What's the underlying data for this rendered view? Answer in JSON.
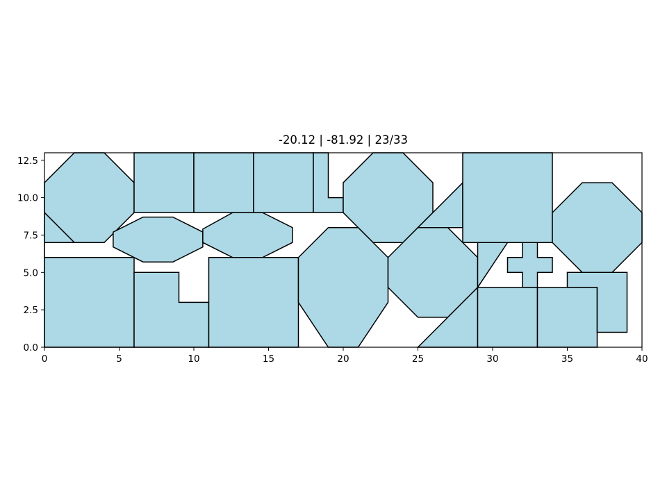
{
  "chart_data": {
    "type": "polygon-packing",
    "title": "-20.12 | -81.92 | 23/33",
    "xlabel": "",
    "ylabel": "",
    "xlim": [
      0,
      40
    ],
    "ylim": [
      0,
      13
    ],
    "xticks": [
      0,
      5,
      10,
      15,
      20,
      25,
      30,
      35,
      40
    ],
    "xtick_labels": [
      "0",
      "5",
      "10",
      "15",
      "20",
      "25",
      "30",
      "35",
      "40"
    ],
    "yticks": [
      0,
      2.5,
      5,
      7.5,
      10,
      12.5
    ],
    "ytick_labels": [
      "0.0",
      "2.5",
      "5.0",
      "7.5",
      "10.0",
      "12.5"
    ],
    "fill_color": "#add8e6",
    "edge_color": "#000000",
    "polygons": [
      [
        [
          0,
          11
        ],
        [
          2,
          13
        ],
        [
          4,
          13
        ],
        [
          6,
          11
        ],
        [
          6,
          9
        ],
        [
          4,
          7
        ],
        [
          2,
          7
        ],
        [
          0,
          9
        ]
      ],
      [
        [
          0,
          9
        ],
        [
          2,
          7
        ],
        [
          0,
          7
        ]
      ],
      [
        [
          0,
          7
        ],
        [
          0,
          6
        ],
        [
          0,
          6
        ]
      ],
      [
        [
          6,
          13
        ],
        [
          10,
          13
        ],
        [
          10,
          9
        ],
        [
          6,
          9
        ]
      ],
      [
        [
          10,
          13
        ],
        [
          14,
          13
        ],
        [
          14,
          9
        ],
        [
          10,
          9
        ]
      ],
      [
        [
          14,
          13
        ],
        [
          18,
          13
        ],
        [
          18,
          9
        ],
        [
          14,
          9
        ]
      ],
      [
        [
          18,
          13
        ],
        [
          19,
          13
        ],
        [
          19,
          10
        ],
        [
          20,
          10
        ],
        [
          20,
          9
        ],
        [
          18,
          9
        ]
      ],
      [
        [
          4.6,
          7.7
        ],
        [
          6.6,
          8.7
        ],
        [
          8.6,
          8.7
        ],
        [
          10.6,
          7.7
        ],
        [
          10.6,
          6.7
        ],
        [
          8.6,
          5.7
        ],
        [
          6.6,
          5.7
        ],
        [
          4.6,
          6.7
        ]
      ],
      [
        [
          10.6,
          7.9
        ],
        [
          12.6,
          9
        ],
        [
          14.6,
          9
        ],
        [
          16.6,
          8
        ],
        [
          16.6,
          7
        ],
        [
          14.6,
          6
        ],
        [
          12.6,
          6
        ],
        [
          10.6,
          7
        ]
      ],
      [
        [
          20,
          11
        ],
        [
          22,
          13
        ],
        [
          24,
          13
        ],
        [
          26,
          11
        ],
        [
          26,
          9
        ],
        [
          24,
          7
        ],
        [
          22,
          7
        ],
        [
          20,
          9
        ]
      ],
      [
        [
          25,
          8
        ],
        [
          28,
          11
        ],
        [
          28,
          8
        ]
      ],
      [
        [
          28,
          13
        ],
        [
          34,
          13
        ],
        [
          34,
          7
        ],
        [
          28,
          7
        ]
      ],
      [
        [
          34,
          9
        ],
        [
          36,
          11
        ],
        [
          38,
          11
        ],
        [
          40,
          9
        ],
        [
          40,
          7
        ],
        [
          38,
          5
        ],
        [
          36,
          5
        ],
        [
          34,
          7
        ]
      ],
      [
        [
          0,
          6
        ],
        [
          6,
          6
        ],
        [
          6,
          0
        ],
        [
          0,
          0
        ]
      ],
      [
        [
          6,
          5
        ],
        [
          9,
          5
        ],
        [
          9,
          3
        ],
        [
          11,
          3
        ],
        [
          11,
          0
        ],
        [
          6,
          0
        ]
      ],
      [
        [
          11,
          6
        ],
        [
          17,
          6
        ],
        [
          17,
          0
        ],
        [
          11,
          0
        ]
      ],
      [
        [
          17,
          6
        ],
        [
          19,
          8
        ],
        [
          21,
          8
        ],
        [
          23,
          6
        ],
        [
          23,
          3
        ],
        [
          21,
          0
        ],
        [
          19,
          0
        ],
        [
          17,
          3
        ]
      ],
      [
        [
          23,
          6
        ],
        [
          25,
          8
        ],
        [
          27,
          8
        ],
        [
          29,
          6
        ],
        [
          29,
          4
        ],
        [
          27,
          2
        ],
        [
          25,
          2
        ],
        [
          23,
          4
        ]
      ],
      [
        [
          29,
          7
        ],
        [
          31,
          7
        ],
        [
          29,
          4
        ]
      ],
      [
        [
          32,
          7
        ],
        [
          33,
          7
        ],
        [
          33,
          6
        ],
        [
          34,
          6
        ],
        [
          34,
          5
        ],
        [
          33,
          5
        ],
        [
          33,
          4
        ],
        [
          32,
          4
        ],
        [
          32,
          5
        ],
        [
          31,
          5
        ],
        [
          31,
          6
        ],
        [
          32,
          6
        ]
      ],
      [
        [
          25,
          0
        ],
        [
          29,
          4
        ],
        [
          29,
          0
        ]
      ],
      [
        [
          29,
          4
        ],
        [
          33,
          4
        ],
        [
          33,
          0
        ],
        [
          29,
          0
        ]
      ],
      [
        [
          33,
          4
        ],
        [
          37,
          4
        ],
        [
          37,
          0
        ],
        [
          33,
          0
        ]
      ],
      [
        [
          35,
          5
        ],
        [
          39,
          5
        ],
        [
          39,
          1
        ],
        [
          37,
          1
        ],
        [
          37,
          4
        ],
        [
          35,
          4
        ]
      ]
    ]
  }
}
